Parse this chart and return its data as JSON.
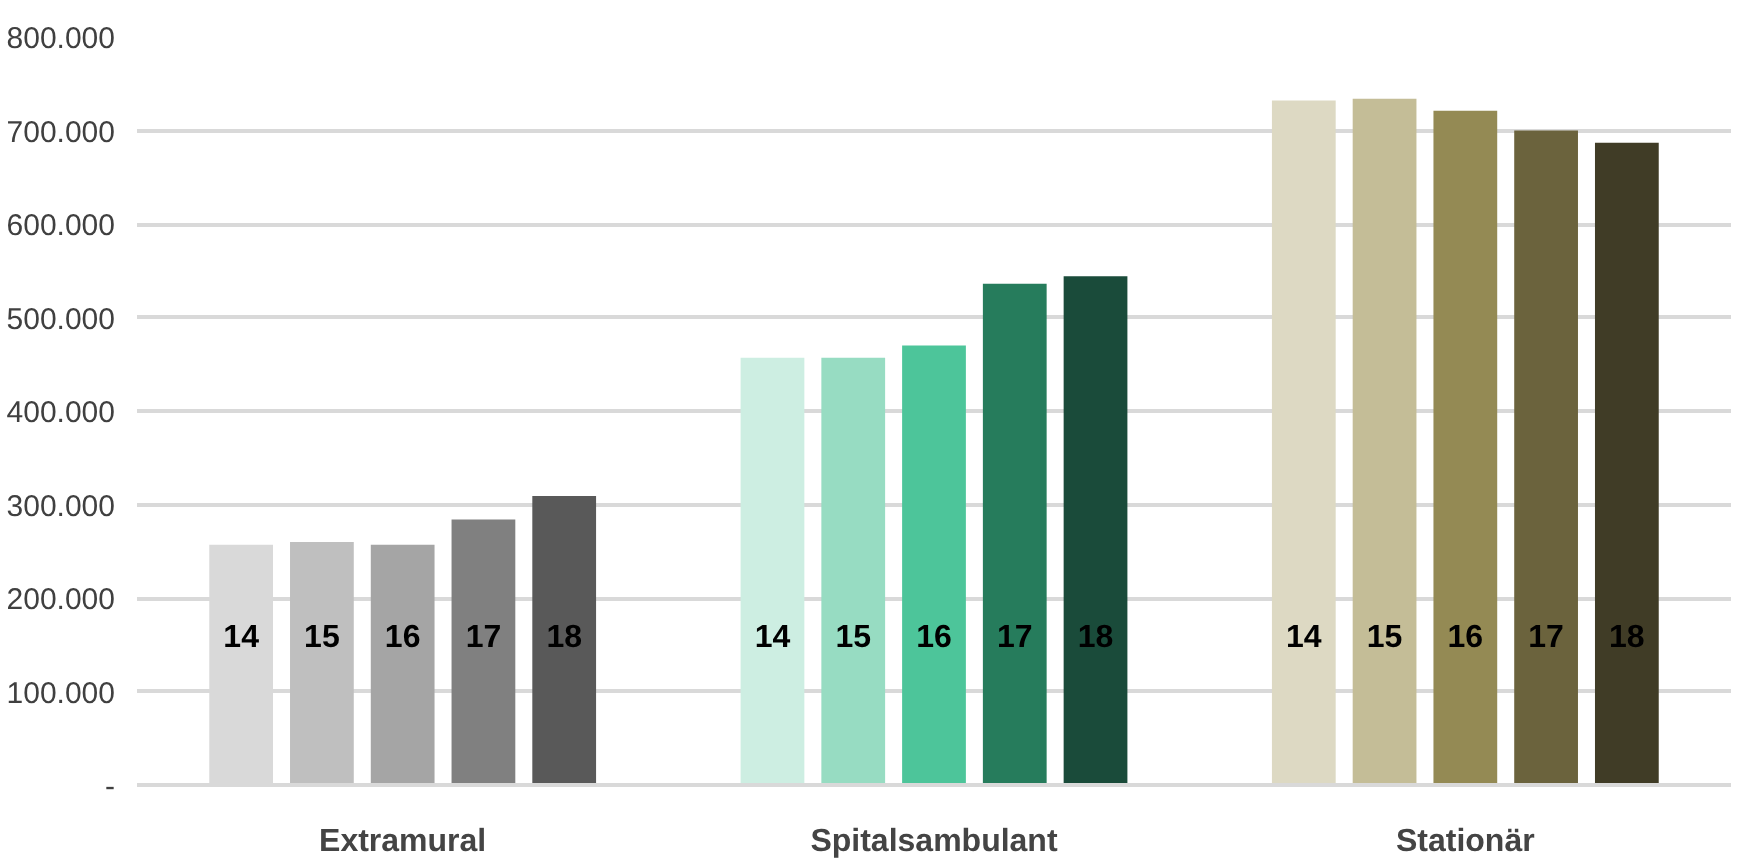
{
  "chart_data": {
    "type": "bar",
    "categories": [
      "Extramural",
      "Spitalsambulant",
      "Stationär"
    ],
    "series": [
      {
        "name": "14",
        "colors": [
          "#d9d9d9",
          "#cdeee2",
          "#ddd9c3"
        ],
        "values": [
          257000,
          457000,
          732000
        ]
      },
      {
        "name": "15",
        "colors": [
          "#bfbfbf",
          "#97dcc2",
          "#c4bd97"
        ],
        "values": [
          260000,
          457000,
          734000
        ]
      },
      {
        "name": "16",
        "colors": [
          "#a5a5a5",
          "#4dc59a",
          "#948a54"
        ],
        "values": [
          257000,
          470000,
          721000
        ]
      },
      {
        "name": "17",
        "colors": [
          "#808080",
          "#267c5c",
          "#6b633d"
        ],
        "values": [
          284000,
          536000,
          700000
        ]
      },
      {
        "name": "18",
        "colors": [
          "#595959",
          "#1a4b3a",
          "#403c26"
        ],
        "values": [
          309000,
          544000,
          687000
        ]
      }
    ],
    "ylim": [
      0,
      800000
    ],
    "yticks": [
      {
        "value": 0,
        "label": "-"
      },
      {
        "value": 100000,
        "label": "100.000"
      },
      {
        "value": 200000,
        "label": "200.000"
      },
      {
        "value": 300000,
        "label": "300.000"
      },
      {
        "value": 400000,
        "label": "400.000"
      },
      {
        "value": 500000,
        "label": "500.000"
      },
      {
        "value": 600000,
        "label": "600.000"
      },
      {
        "value": 700000,
        "label": "700.000"
      },
      {
        "value": 800000,
        "label": "800.000"
      }
    ],
    "grid": "y"
  }
}
